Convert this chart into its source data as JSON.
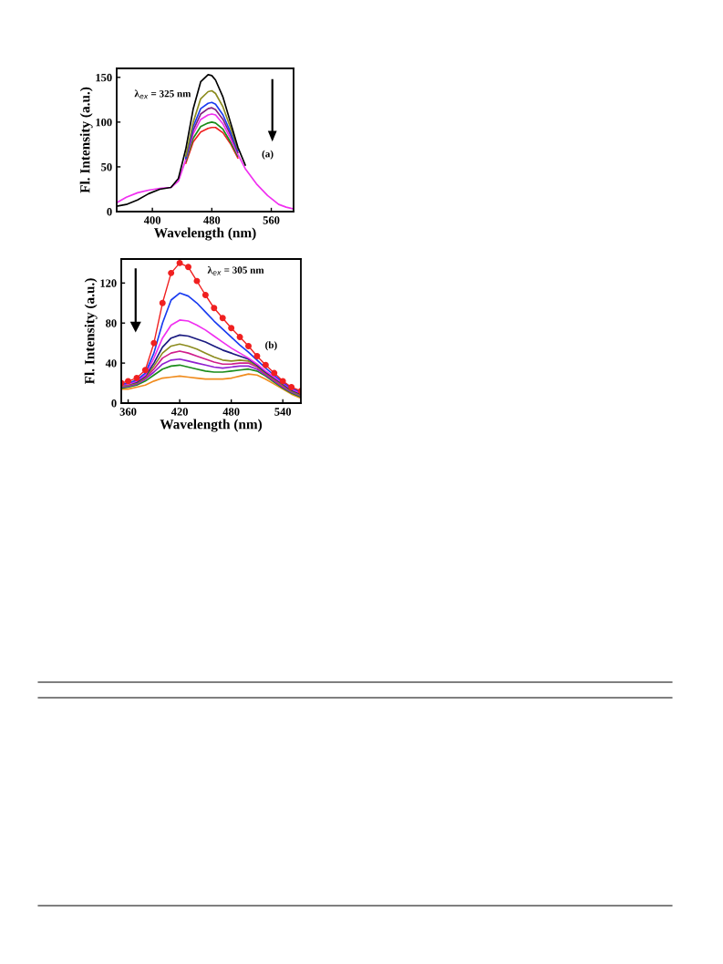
{
  "chart_data": [
    {
      "type": "line",
      "xlabel": "Wavelength (nm)",
      "ylabel": "Fl. Intensity (a.u.)",
      "xlim": [
        352,
        590
      ],
      "ylim": [
        0,
        160
      ],
      "xticks": [
        400,
        480,
        560
      ],
      "yticks": [
        0,
        50,
        100,
        150
      ],
      "grid": false,
      "legend": false,
      "x": [
        352,
        365,
        380,
        395,
        410,
        425,
        435,
        445,
        455,
        465,
        475,
        480,
        485,
        495,
        505,
        515,
        525,
        540,
        555,
        570,
        580,
        590
      ],
      "annotations": [
        "λ$_{ex}$ = 325 nm",
        "(a)"
      ],
      "series": [
        {
          "color": "#000000",
          "values": [
            6,
            8,
            13,
            20,
            25,
            27,
            37,
            70,
            115,
            145,
            153,
            152,
            147,
            128,
            100,
            72,
            52,
            null,
            null,
            null,
            null,
            null
          ]
        },
        {
          "color": "#8c8c1e",
          "values": [
            null,
            null,
            null,
            null,
            null,
            null,
            null,
            62,
            100,
            126,
            134,
            135,
            132,
            117,
            94,
            70,
            null,
            null,
            null,
            null,
            null,
            null
          ]
        },
        {
          "color": "#1a3cf0",
          "values": [
            null,
            null,
            null,
            null,
            null,
            null,
            null,
            60,
            95,
            115,
            121,
            122,
            120,
            108,
            89,
            68,
            null,
            null,
            null,
            null,
            null,
            null
          ]
        },
        {
          "color": "#80207f",
          "values": [
            null,
            null,
            null,
            null,
            null,
            null,
            null,
            59,
            91,
            109,
            115,
            116,
            114,
            103,
            86,
            66,
            null,
            null,
            null,
            null,
            null,
            null
          ]
        },
        {
          "color": "#f030f0",
          "values": [
            10,
            16,
            21,
            24,
            26,
            27,
            34,
            58,
            87,
            103,
            108,
            109,
            108,
            98,
            82,
            64,
            48,
            31,
            18,
            8,
            5,
            3
          ]
        },
        {
          "color": "#1a8c1a",
          "values": [
            null,
            null,
            null,
            null,
            null,
            null,
            null,
            56,
            82,
            95,
            99,
            100,
            99,
            92,
            78,
            62,
            null,
            null,
            null,
            null,
            null,
            null
          ]
        },
        {
          "color": "#f02020",
          "values": [
            null,
            null,
            null,
            null,
            null,
            null,
            null,
            54,
            78,
            89,
            93,
            94,
            94,
            88,
            76,
            60,
            null,
            null,
            null,
            null,
            null,
            null
          ]
        }
      ]
    },
    {
      "type": "line",
      "xlabel": "Wavelength (nm)",
      "ylabel": "Fl. Intensity (a.u.)",
      "xlim": [
        352,
        561
      ],
      "ylim": [
        0,
        144
      ],
      "xticks": [
        360,
        420,
        480,
        540
      ],
      "yticks": [
        0,
        40,
        80,
        120
      ],
      "grid": false,
      "legend": false,
      "x": [
        352,
        360,
        370,
        380,
        390,
        400,
        410,
        420,
        430,
        440,
        450,
        460,
        470,
        480,
        490,
        500,
        510,
        520,
        530,
        540,
        550,
        561
      ],
      "annotations": [
        "λ$_{ex}$ = 305 nm",
        "(b)"
      ],
      "series": [
        {
          "color": "#f02020",
          "marker": "circle",
          "values": [
            20,
            22,
            25,
            33,
            60,
            100,
            130,
            140,
            136,
            122,
            108,
            95,
            85,
            75,
            66,
            57,
            47,
            38,
            30,
            22,
            16,
            12
          ]
        },
        {
          "color": "#1a3cf0",
          "values": [
            19,
            20,
            23,
            30,
            50,
            80,
            103,
            110,
            107,
            100,
            91,
            82,
            74,
            66,
            58,
            51,
            43,
            35,
            28,
            21,
            15,
            11
          ]
        },
        {
          "color": "#f030f0",
          "values": [
            18,
            19,
            22,
            28,
            45,
            65,
            78,
            83,
            82,
            78,
            73,
            67,
            61,
            55,
            50,
            45,
            39,
            32,
            26,
            20,
            14,
            10
          ]
        },
        {
          "color": "#1a1a80",
          "values": [
            18,
            19,
            21,
            27,
            40,
            56,
            65,
            68,
            67,
            64,
            61,
            57,
            53,
            50,
            47,
            44,
            38,
            31,
            25,
            19,
            13,
            9
          ]
        },
        {
          "color": "#8c8c1e",
          "values": [
            17,
            18,
            20,
            26,
            37,
            50,
            57,
            59,
            57,
            54,
            50,
            46,
            43,
            42,
            43,
            42,
            37,
            30,
            24,
            18,
            12,
            8
          ]
        },
        {
          "color": "#d01e8c",
          "values": [
            17,
            18,
            20,
            25,
            34,
            45,
            50,
            52,
            50,
            47,
            44,
            41,
            39,
            39,
            40,
            40,
            36,
            29,
            23,
            17,
            12,
            8
          ]
        },
        {
          "color": "#9020d0",
          "values": [
            16,
            17,
            19,
            24,
            31,
            39,
            43,
            44,
            42,
            40,
            38,
            36,
            35,
            36,
            37,
            37,
            34,
            28,
            22,
            16,
            11,
            7
          ]
        },
        {
          "color": "#1a8c1a",
          "values": [
            15,
            16,
            18,
            22,
            28,
            34,
            37,
            38,
            36,
            34,
            32,
            31,
            31,
            32,
            33,
            34,
            32,
            27,
            21,
            15,
            10,
            6
          ]
        },
        {
          "color": "#f08c1e",
          "values": [
            14,
            14,
            16,
            18,
            22,
            25,
            26,
            27,
            26,
            25,
            24,
            24,
            24,
            25,
            27,
            29,
            28,
            24,
            19,
            14,
            9,
            5
          ]
        }
      ]
    }
  ]
}
